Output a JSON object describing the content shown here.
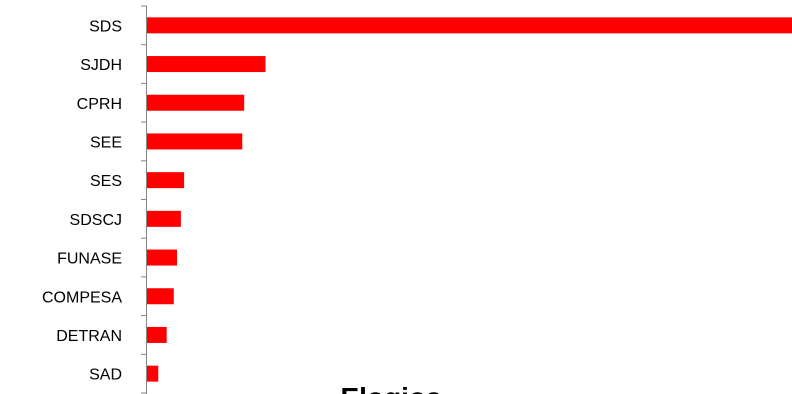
{
  "chart_data": {
    "type": "bar",
    "orientation": "horizontal",
    "title": "Elogios",
    "categories": [
      "SDS",
      "SJDH",
      "CPRH",
      "SEE",
      "SES",
      "SDSCJ",
      "FUNASE",
      "COMPESA",
      "DETRAN",
      "SAD"
    ],
    "values": [
      100,
      18.5,
      15.2,
      14.9,
      5.9,
      5.4,
      4.8,
      4.3,
      3.2,
      1.9
    ],
    "xlim": [
      0,
      100
    ],
    "xlabel": "",
    "ylabel": "",
    "grid": false,
    "legend": "none",
    "bar_color": "#ff0000",
    "axis_color": "#868686"
  }
}
